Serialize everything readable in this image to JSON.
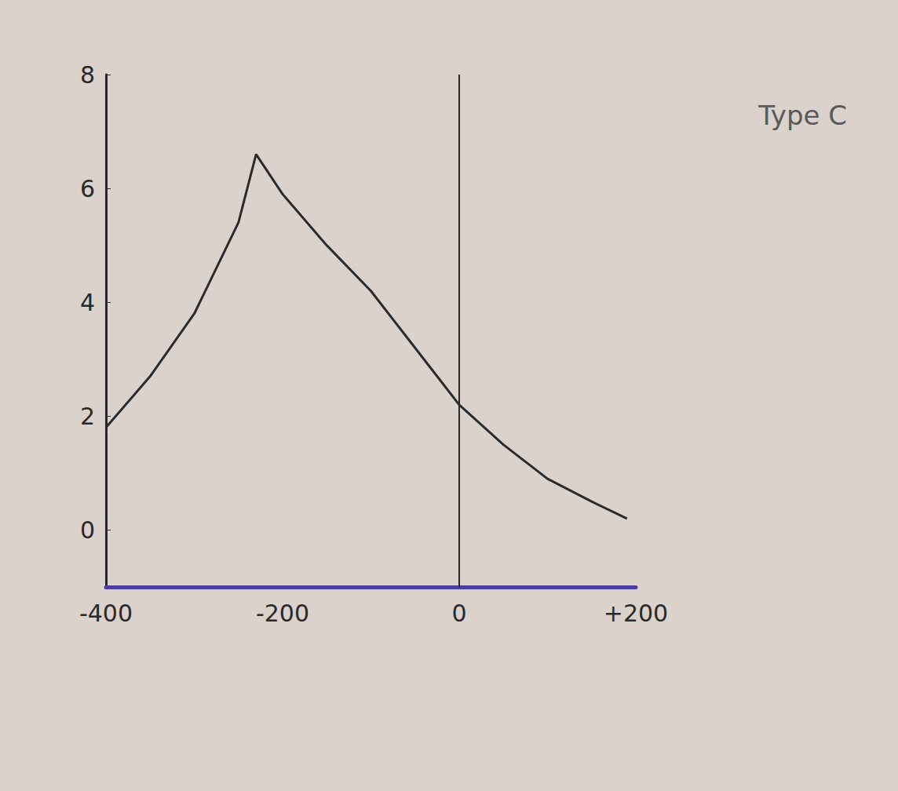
{
  "chart_data": {
    "type": "line",
    "title": "Type C",
    "x": [
      -400,
      -350,
      -300,
      -250,
      -230,
      -200,
      -150,
      -100,
      -50,
      0,
      50,
      100,
      150,
      190
    ],
    "values": [
      1.8,
      2.7,
      3.8,
      5.4,
      6.6,
      5.9,
      5.0,
      4.2,
      3.2,
      2.2,
      1.5,
      0.9,
      0.5,
      0.2
    ],
    "color": "#2b2b2b",
    "marker": "none",
    "line_style": "solid",
    "xlim": [
      -400,
      200
    ],
    "xticks": [
      -400,
      -200,
      0,
      {
        "value": 200,
        "label": "+200"
      }
    ],
    "ylim": [
      -1,
      8
    ],
    "yticks": [
      0,
      2,
      4,
      6,
      8
    ],
    "grid": false,
    "vlines": [
      0
    ]
  }
}
